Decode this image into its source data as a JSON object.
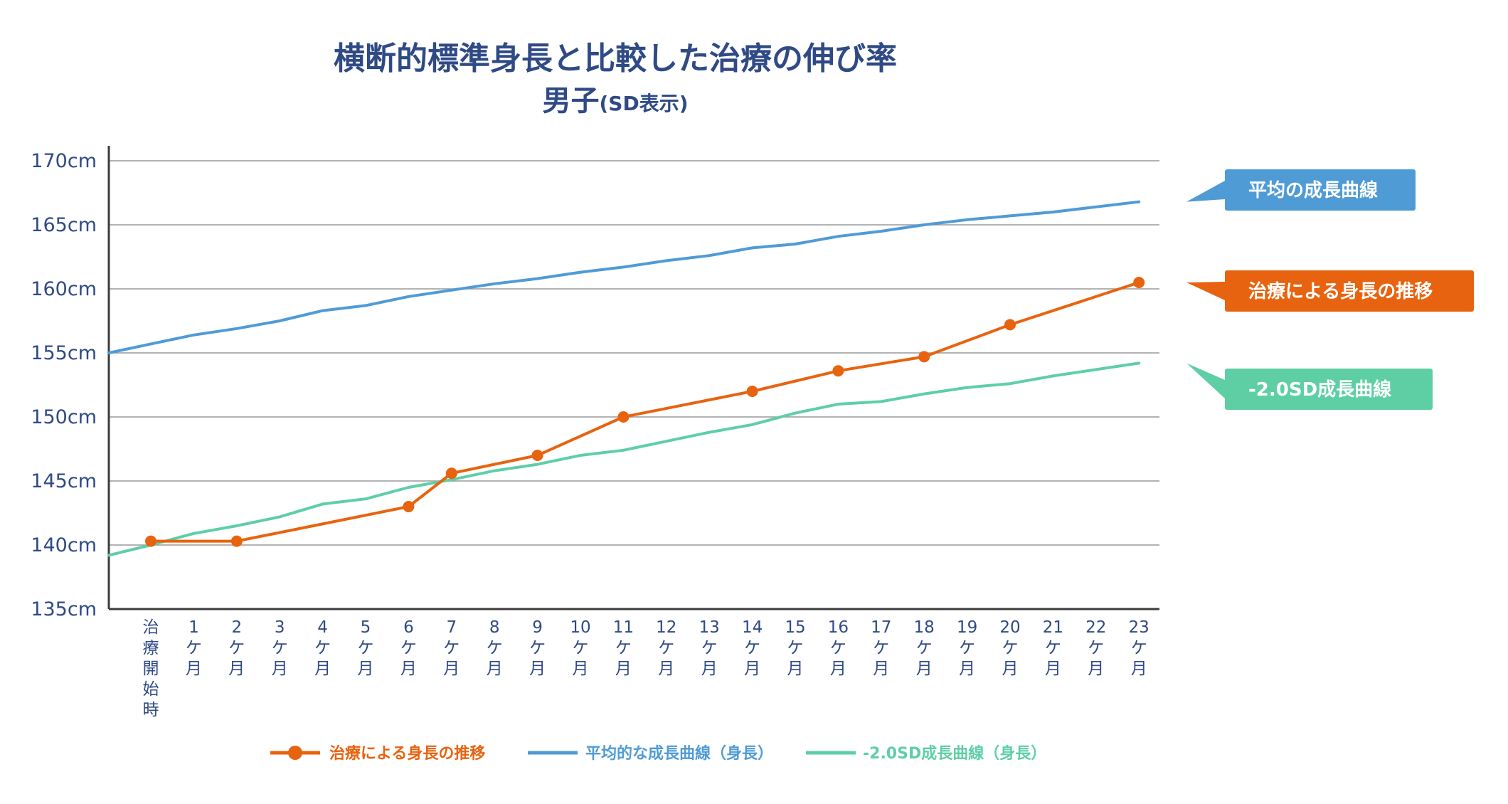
{
  "colors": {
    "treatment": "#e8630f",
    "average": "#4f9bd6",
    "minus2sd": "#5ecfa5",
    "axis": "#3c3c3c",
    "grid": "#9a9a9a",
    "text": "#2f4a85"
  },
  "chart_data": {
    "type": "line",
    "title": "横断的標準身長と比較した治療の伸び率",
    "subtitle_main": "男子",
    "subtitle_paren": "(SD表示)",
    "ylim": [
      135,
      170
    ],
    "yticks": [
      170,
      165,
      160,
      155,
      150,
      145,
      140,
      135
    ],
    "ytick_labels": [
      "170cm",
      "165cm",
      "160cm",
      "155cm",
      "150cm",
      "145cm",
      "140cm",
      "135cm"
    ],
    "grid": true,
    "categories": [
      {
        "lines": [
          "治",
          "療",
          "開",
          "始",
          "時"
        ]
      },
      {
        "lines": [
          "1",
          "ケ",
          "月"
        ]
      },
      {
        "lines": [
          "2",
          "ケ",
          "月"
        ]
      },
      {
        "lines": [
          "3",
          "ケ",
          "月"
        ]
      },
      {
        "lines": [
          "4",
          "ケ",
          "月"
        ]
      },
      {
        "lines": [
          "5",
          "ケ",
          "月"
        ]
      },
      {
        "lines": [
          "6",
          "ケ",
          "月"
        ]
      },
      {
        "lines": [
          "7",
          "ケ",
          "月"
        ]
      },
      {
        "lines": [
          "8",
          "ケ",
          "月"
        ]
      },
      {
        "lines": [
          "9",
          "ケ",
          "月"
        ]
      },
      {
        "lines": [
          "10",
          "ケ",
          "月"
        ]
      },
      {
        "lines": [
          "11",
          "ケ",
          "月"
        ]
      },
      {
        "lines": [
          "12",
          "ケ",
          "月"
        ]
      },
      {
        "lines": [
          "13",
          "ケ",
          "月"
        ]
      },
      {
        "lines": [
          "14",
          "ケ",
          "月"
        ]
      },
      {
        "lines": [
          "15",
          "ケ",
          "月"
        ]
      },
      {
        "lines": [
          "16",
          "ケ",
          "月"
        ]
      },
      {
        "lines": [
          "17",
          "ケ",
          "月"
        ]
      },
      {
        "lines": [
          "18",
          "ケ",
          "月"
        ]
      },
      {
        "lines": [
          "19",
          "ケ",
          "月"
        ]
      },
      {
        "lines": [
          "20",
          "ケ",
          "月"
        ]
      },
      {
        "lines": [
          "21",
          "ケ",
          "月"
        ]
      },
      {
        "lines": [
          "22",
          "ケ",
          "月"
        ]
      },
      {
        "lines": [
          "23",
          "ケ",
          "月"
        ]
      }
    ],
    "series": [
      {
        "key": "average",
        "name": "平均的な成長曲線（身長）",
        "callout": "平均の成長曲線",
        "x": [
          -1,
          0,
          1,
          2,
          3,
          4,
          5,
          6,
          7,
          8,
          9,
          10,
          11,
          12,
          13,
          14,
          15,
          16,
          17,
          18,
          19,
          20,
          21,
          22,
          23
        ],
        "values": [
          155.0,
          155.7,
          156.4,
          156.9,
          157.5,
          158.3,
          158.7,
          159.4,
          159.9,
          160.4,
          160.8,
          161.3,
          161.7,
          162.2,
          162.6,
          163.2,
          163.5,
          164.1,
          164.5,
          165.0,
          165.4,
          165.7,
          166.0,
          166.4,
          166.8
        ],
        "markers": false
      },
      {
        "key": "treatment",
        "name": "治療による身長の推移",
        "callout": "治療による身長の推移",
        "x": [
          0,
          2,
          6,
          7,
          9,
          11,
          14,
          16,
          18,
          20,
          23
        ],
        "values": [
          140.3,
          140.3,
          143.0,
          145.6,
          147.0,
          150.0,
          152.0,
          153.6,
          154.7,
          157.2,
          160.5
        ],
        "markers": true
      },
      {
        "key": "minus2sd",
        "name": "-2.0SD成長曲線（身長）",
        "callout": "-2.0SD成長曲線",
        "x": [
          -1,
          0,
          1,
          2,
          3,
          4,
          5,
          6,
          7,
          8,
          9,
          10,
          11,
          12,
          13,
          14,
          15,
          16,
          17,
          18,
          19,
          20,
          21,
          22,
          23
        ],
        "values": [
          139.2,
          140.0,
          140.9,
          141.5,
          142.2,
          143.2,
          143.6,
          144.5,
          145.1,
          145.8,
          146.3,
          147.0,
          147.4,
          148.1,
          148.8,
          149.4,
          150.3,
          151.0,
          151.2,
          151.8,
          152.3,
          152.6,
          153.2,
          153.7,
          154.2
        ],
        "markers": false
      }
    ]
  }
}
